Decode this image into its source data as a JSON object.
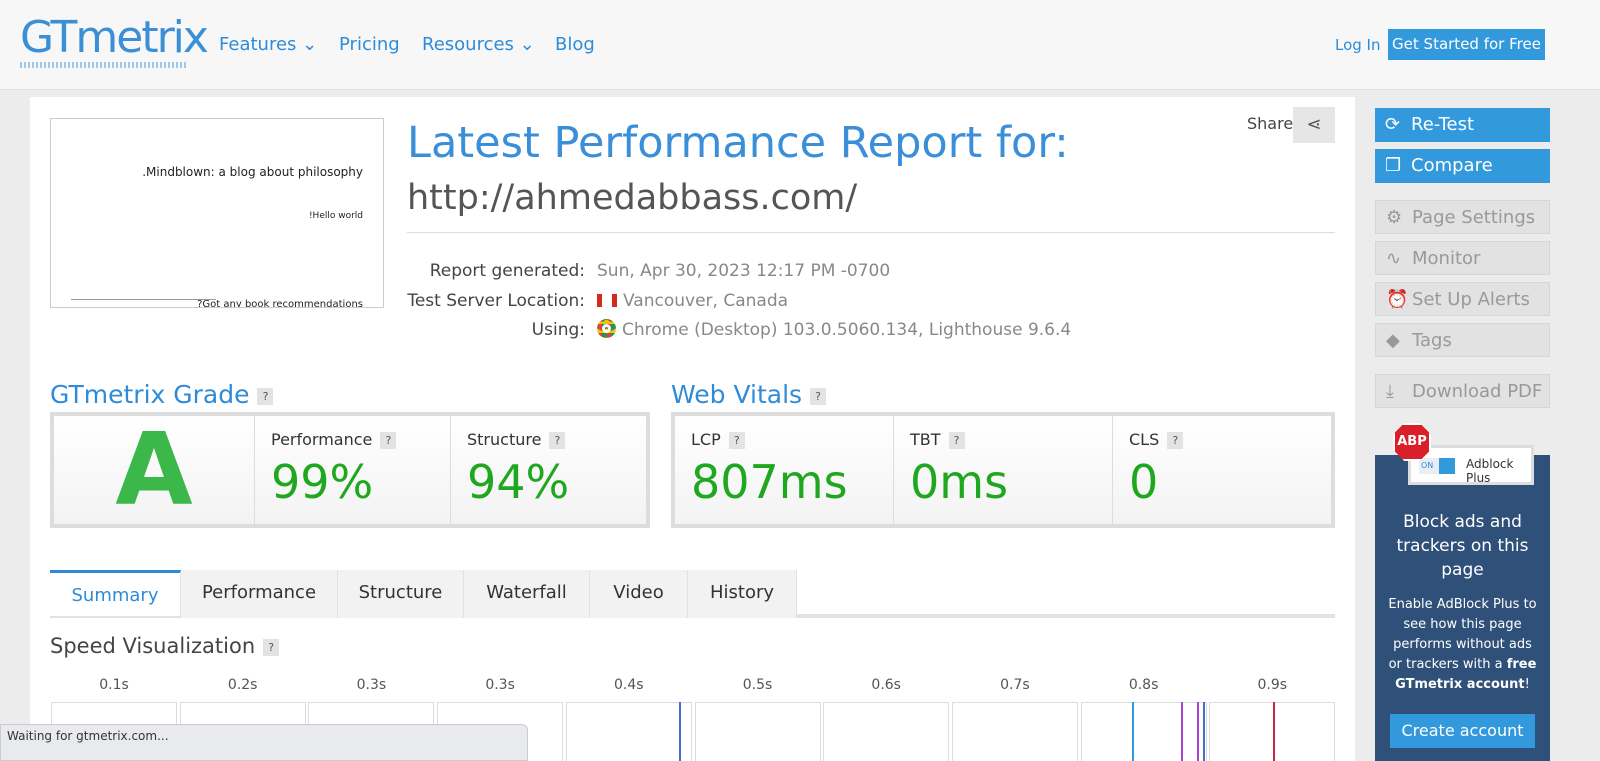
{
  "header": {
    "logo": "GTmetrix",
    "nav": [
      "Features",
      "Pricing",
      "Resources",
      "Blog"
    ],
    "login": "Log In",
    "cta": "Get Started for Free"
  },
  "report": {
    "title": "Latest Performance Report for:",
    "url": "http://ahmedabbass.com/",
    "share": "Share",
    "thumbnail": {
      "heading": ".Mindblown: a blog about philosophy",
      "post": "!Hello world",
      "footer": "?Got any book recommendations"
    },
    "details": [
      {
        "label": "Report generated:",
        "value": "Sun, Apr 30, 2023 12:17 PM -0700"
      },
      {
        "label": "Test Server Location:",
        "value": "Vancouver, Canada"
      },
      {
        "label": "Using:",
        "value": "Chrome (Desktop) 103.0.5060.134, Lighthouse 9.6.4"
      }
    ]
  },
  "help": "?",
  "grade": {
    "title": "GTmetrix Grade",
    "grade": "A",
    "metrics": [
      {
        "label": "Performance",
        "value": "99%"
      },
      {
        "label": "Structure",
        "value": "94%"
      }
    ]
  },
  "vitals": {
    "title": "Web Vitals",
    "metrics": [
      {
        "label": "LCP",
        "value": "807ms"
      },
      {
        "label": "TBT",
        "value": "0ms"
      },
      {
        "label": "CLS",
        "value": "0"
      }
    ]
  },
  "tabs": [
    "Summary",
    "Performance",
    "Structure",
    "Waterfall",
    "Video",
    "History"
  ],
  "speed": {
    "title": "Speed Visualization",
    "times": [
      "0.1s",
      "0.2s",
      "0.3s",
      "0.3s",
      "0.4s",
      "0.5s",
      "0.6s",
      "0.7s",
      "0.8s",
      "0.9s"
    ]
  },
  "sidebar": {
    "primary": [
      "Re-Test",
      "Compare"
    ],
    "secondary": [
      "Page Settings",
      "Monitor",
      "Set Up Alerts",
      "Tags"
    ],
    "download": "Download PDF"
  },
  "ad": {
    "badge": "ABP",
    "toggle": "ON",
    "brand": "Adblock Plus",
    "headline": "Block ads and trackers on this page",
    "body": "Enable AdBlock Plus to see how this page performs without ads or trackers with a ",
    "strong": "free GTmetrix account",
    "end": "!",
    "button": "Create account"
  },
  "status": "Waiting for gtmetrix.com..."
}
